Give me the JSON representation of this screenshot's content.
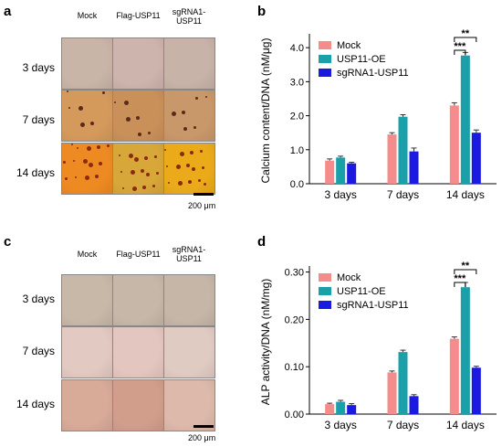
{
  "panels": {
    "a": {
      "letter": "a",
      "columns": [
        "Mock",
        "Flag-USP11",
        "sgRNA1-USP11"
      ],
      "rows": [
        "3 days",
        "7 days",
        "14 days"
      ],
      "scale_label": "200 μm",
      "tiles": [
        [
          "#c9b5a8",
          "#cdb4ad",
          "#c7b3a8"
        ],
        [
          "#d49a5c",
          "#c9905a",
          "#c9986a"
        ],
        [
          "#ee8a22",
          "#d8a73a",
          "#eaaa1a"
        ]
      ]
    },
    "c": {
      "letter": "c",
      "columns": [
        "Mock",
        "Flag-USP11",
        "sgRNA1-USP11"
      ],
      "rows": [
        "3 days",
        "7 days",
        "14 days"
      ],
      "scale_label": "200 μm",
      "tiles": [
        [
          "#c8b8a8",
          "#c7b7a9",
          "#c6b6a8"
        ],
        [
          "#e2c9c1",
          "#e4c6c0",
          "#e0cbc3"
        ],
        [
          "#d8aa98",
          "#d19e8c",
          "#dcb9aa"
        ]
      ]
    },
    "b": {
      "letter": "b"
    },
    "d": {
      "letter": "d"
    }
  },
  "colors": {
    "mock": "#f48c8c",
    "oe": "#1aa0a8",
    "sg": "#1a1ae0"
  },
  "chart_data": [
    {
      "type": "bar",
      "panel": "b",
      "categories": [
        "3 days",
        "7 days",
        "14 days"
      ],
      "series": [
        {
          "name": "Mock",
          "values": [
            0.68,
            1.45,
            2.3
          ],
          "errors": [
            0.05,
            0.05,
            0.08
          ]
        },
        {
          "name": "USP11-OE",
          "values": [
            0.77,
            1.97,
            3.77
          ],
          "errors": [
            0.04,
            0.06,
            0.09
          ]
        },
        {
          "name": "sgRNA1-USP11",
          "values": [
            0.6,
            0.95,
            1.5
          ],
          "errors": [
            0.03,
            0.1,
            0.08
          ]
        }
      ],
      "ylabel": "Calcium content/DNA (nM/μg)",
      "xlabel": "",
      "ylim": [
        0,
        4.3
      ],
      "yticks": [
        "0.0",
        "1.0",
        "2.0",
        "3.0",
        "4.0"
      ],
      "ytick_values": [
        0,
        1,
        2,
        3,
        4
      ],
      "annotations": [
        "**",
        "***"
      ],
      "legend": "top-left"
    },
    {
      "type": "bar",
      "panel": "d",
      "categories": [
        "3 days",
        "7 days",
        "14 days"
      ],
      "series": [
        {
          "name": "Mock",
          "values": [
            0.021,
            0.088,
            0.159
          ],
          "errors": [
            0.002,
            0.003,
            0.004
          ]
        },
        {
          "name": "USP11-OE",
          "values": [
            0.026,
            0.131,
            0.268
          ],
          "errors": [
            0.003,
            0.004,
            0.01
          ]
        },
        {
          "name": "sgRNA1-USP11",
          "values": [
            0.019,
            0.038,
            0.098
          ],
          "errors": [
            0.003,
            0.003,
            0.003
          ]
        }
      ],
      "ylabel": "ALP activity/DNA (nM/mg)",
      "xlabel": "",
      "ylim": [
        0,
        0.305
      ],
      "yticks": [
        "0.00",
        "0.10",
        "0.20",
        "0.30"
      ],
      "ytick_values": [
        0,
        0.1,
        0.2,
        0.3
      ],
      "annotations": [
        "**",
        "***"
      ],
      "legend": "top-left"
    }
  ]
}
